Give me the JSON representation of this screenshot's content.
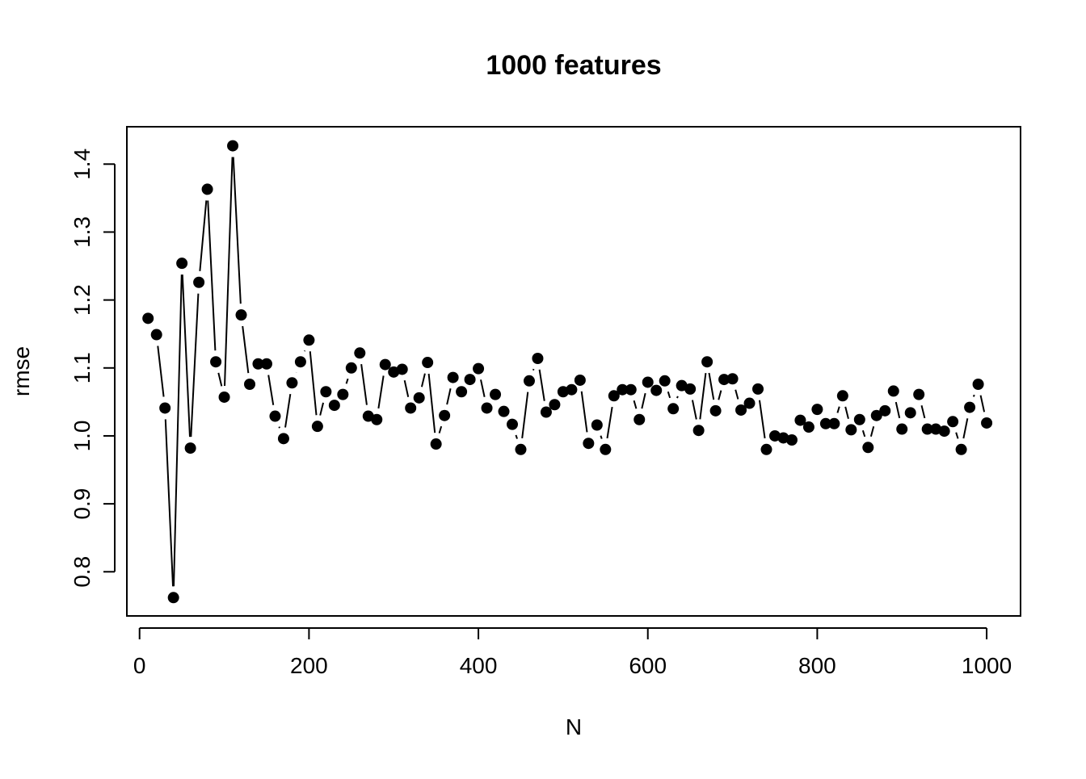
{
  "chart_data": {
    "type": "line",
    "title": "1000 features",
    "xlabel": "N",
    "ylabel": "rmse",
    "xlim": [
      -15,
      1040
    ],
    "ylim": [
      0.735,
      1.455
    ],
    "grid": false,
    "xticks": [
      0,
      200,
      400,
      600,
      800,
      1000
    ],
    "xtick_labels": [
      "0",
      "200",
      "400",
      "600",
      "800",
      "1000"
    ],
    "yticks": [
      0.8,
      0.9,
      1.0,
      1.1,
      1.2,
      1.3,
      1.4
    ],
    "ytick_labels": [
      "0.8",
      "0.9",
      "1.0",
      "1.1",
      "1.2",
      "1.3",
      "1.4"
    ],
    "series": [
      {
        "style": "points-and-lines",
        "color": "#000000",
        "x": [
          10,
          20,
          30,
          40,
          50,
          60,
          70,
          80,
          90,
          100,
          110,
          120,
          130,
          140,
          150,
          160,
          170,
          180,
          190,
          200,
          210,
          220,
          230,
          240,
          250,
          260,
          270,
          280,
          290,
          300,
          310,
          320,
          330,
          340,
          350,
          360,
          370,
          380,
          390,
          400,
          410,
          420,
          430,
          440,
          450,
          460,
          470,
          480,
          490,
          500,
          510,
          520,
          530,
          540,
          550,
          560,
          570,
          580,
          590,
          600,
          610,
          620,
          630,
          640,
          650,
          660,
          670,
          680,
          690,
          700,
          710,
          720,
          730,
          740,
          750,
          760,
          770,
          780,
          790,
          800,
          810,
          820,
          830,
          840,
          850,
          860,
          870,
          880,
          890,
          900,
          910,
          920,
          930,
          940,
          950,
          960,
          970,
          980,
          990,
          1000
        ],
        "y": [
          1.173,
          1.149,
          1.041,
          0.762,
          1.254,
          0.982,
          1.226,
          1.363,
          1.109,
          1.057,
          1.427,
          1.178,
          1.076,
          1.106,
          1.106,
          1.029,
          0.996,
          1.078,
          1.109,
          1.141,
          1.014,
          1.065,
          1.045,
          1.061,
          1.1,
          1.122,
          1.029,
          1.024,
          1.105,
          1.094,
          1.098,
          1.041,
          1.056,
          1.108,
          0.988,
          1.03,
          1.086,
          1.065,
          1.083,
          1.099,
          1.041,
          1.061,
          1.036,
          1.017,
          0.98,
          1.081,
          1.114,
          1.035,
          1.046,
          1.065,
          1.068,
          1.082,
          0.989,
          1.016,
          0.98,
          1.059,
          1.068,
          1.068,
          1.024,
          1.079,
          1.067,
          1.081,
          1.04,
          1.074,
          1.069,
          1.008,
          1.109,
          1.037,
          1.083,
          1.084,
          1.038,
          1.048,
          1.069,
          0.98,
          1.0,
          0.997,
          0.994,
          1.023,
          1.013,
          1.039,
          1.018,
          1.018,
          1.059,
          1.009,
          1.024,
          0.983,
          1.03,
          1.037,
          1.066,
          1.01,
          1.034,
          1.061,
          1.01,
          1.01,
          1.007,
          1.021,
          0.98,
          1.042,
          1.076,
          1.019
        ]
      }
    ]
  }
}
